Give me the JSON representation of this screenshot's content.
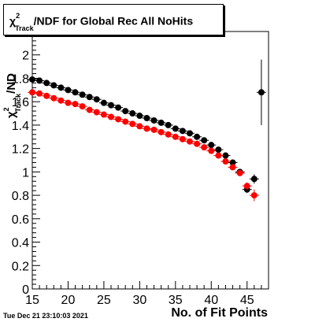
{
  "chart_data": {
    "type": "scatter",
    "title": "χ²Track/NDF for Global Rec All NoHits",
    "title_parts": {
      "chi": "χ",
      "sup": "2",
      "sub": "Track",
      "rest": "/NDF for Global Rec All NoHits"
    },
    "xlabel": "No. of Fit Points",
    "ylabel_parts": {
      "chi": "χ",
      "sup": "2",
      "sub": "Track",
      "rest": "/ND"
    },
    "xlim": [
      15,
      48
    ],
    "ylim": [
      0,
      2.2
    ],
    "x_ticks": [
      15,
      20,
      25,
      30,
      35,
      40,
      45
    ],
    "y_ticks": [
      0,
      0.2,
      0.4,
      0.6,
      0.8,
      1,
      1.2,
      1.4,
      1.6,
      1.8,
      2
    ],
    "x_tick_labels": [
      "15",
      "20",
      "25",
      "30",
      "35",
      "40",
      "45"
    ],
    "y_tick_labels": [
      "0",
      "0.2",
      "0.4",
      "0.6",
      "0.8",
      "1",
      "1.2",
      "1.4",
      "1.6",
      "1.8",
      "2"
    ],
    "grid": false,
    "colors": {
      "black": "#000000",
      "red": "#ff0000"
    },
    "series": [
      {
        "color": "#000000",
        "x": [
          15,
          16,
          17,
          18,
          19,
          20,
          21,
          22,
          23,
          24,
          25,
          26,
          27,
          28,
          29,
          30,
          31,
          32,
          33,
          34,
          35,
          36,
          37,
          38,
          39,
          40,
          41,
          42,
          43,
          44,
          45,
          46,
          47
        ],
        "y": [
          1.79,
          1.78,
          1.76,
          1.74,
          1.72,
          1.7,
          1.68,
          1.66,
          1.64,
          1.62,
          1.59,
          1.57,
          1.55,
          1.52,
          1.5,
          1.48,
          1.46,
          1.44,
          1.42,
          1.4,
          1.37,
          1.35,
          1.33,
          1.3,
          1.27,
          1.23,
          1.19,
          1.14,
          1.08,
          1.0,
          0.85,
          0.94,
          1.68
        ],
        "yerr": [
          0.005,
          0.005,
          0.005,
          0.005,
          0.005,
          0.005,
          0.005,
          0.005,
          0.005,
          0.005,
          0.005,
          0.005,
          0.005,
          0.005,
          0.005,
          0.005,
          0.005,
          0.005,
          0.005,
          0.005,
          0.005,
          0.005,
          0.005,
          0.005,
          0.005,
          0.005,
          0.006,
          0.008,
          0.01,
          0.02,
          0.03,
          0.04,
          0.28
        ]
      },
      {
        "color": "#ff0000",
        "x": [
          15,
          16,
          17,
          18,
          19,
          20,
          21,
          22,
          23,
          24,
          25,
          26,
          27,
          28,
          29,
          30,
          31,
          32,
          33,
          34,
          35,
          36,
          37,
          38,
          39,
          40,
          41,
          42,
          43,
          44,
          45,
          46
        ],
        "y": [
          1.68,
          1.67,
          1.65,
          1.63,
          1.61,
          1.59,
          1.58,
          1.56,
          1.53,
          1.51,
          1.49,
          1.47,
          1.45,
          1.43,
          1.41,
          1.39,
          1.37,
          1.36,
          1.34,
          1.32,
          1.3,
          1.28,
          1.26,
          1.24,
          1.21,
          1.18,
          1.14,
          1.09,
          1.04,
          0.99,
          0.88,
          0.8
        ],
        "yerr": [
          0.005,
          0.005,
          0.005,
          0.005,
          0.005,
          0.005,
          0.005,
          0.005,
          0.005,
          0.005,
          0.005,
          0.005,
          0.005,
          0.005,
          0.005,
          0.005,
          0.005,
          0.005,
          0.005,
          0.005,
          0.005,
          0.005,
          0.005,
          0.005,
          0.005,
          0.005,
          0.006,
          0.008,
          0.01,
          0.02,
          0.03,
          0.05
        ]
      }
    ]
  },
  "datestamp": "Tue Dec 21 23:10:03 2021"
}
